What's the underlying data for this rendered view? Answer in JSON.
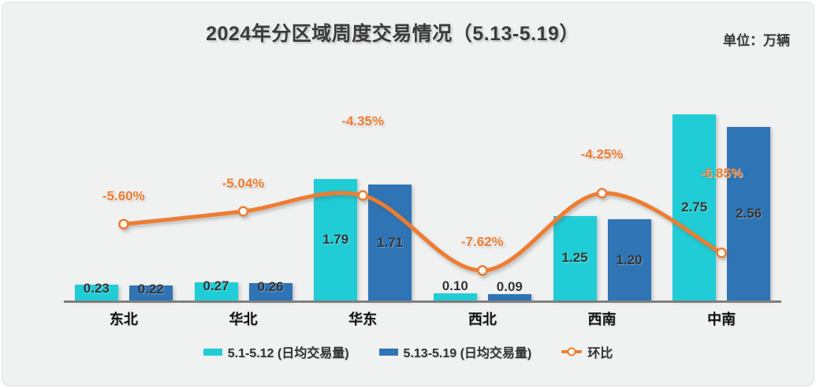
{
  "chart_data": {
    "type": "bar+line",
    "title": "2024年分区域周度交易情况（5.13-5.19）",
    "unit_label": "单位：万辆",
    "categories": [
      "东北",
      "华北",
      "华东",
      "西北",
      "西南",
      "中南"
    ],
    "series": [
      {
        "name": "5.1-5.12 (日均交易量)",
        "type": "bar",
        "color": "#20CDD6",
        "values": [
          0.23,
          0.27,
          1.79,
          0.1,
          1.25,
          2.75
        ]
      },
      {
        "name": "5.13-5.19 (日均交易量)",
        "type": "bar",
        "color": "#2F74B5",
        "values": [
          0.22,
          0.26,
          1.71,
          0.09,
          1.2,
          2.56
        ]
      },
      {
        "name": "环比",
        "type": "line",
        "color": "#ED7D31",
        "values": [
          -5.6,
          -5.04,
          -4.35,
          -7.62,
          -4.25,
          -6.85
        ],
        "labels": [
          "-5.60%",
          "-5.04%",
          "-4.35%",
          "-7.62%",
          "-4.25%",
          "-6.85%"
        ]
      }
    ],
    "value_label_decimals": 2,
    "axis": {
      "baseline_visible": true,
      "gridlines": false,
      "y_axis_labels": false
    },
    "legend_position": "bottom"
  },
  "colors": {
    "background": "#F0F1F1",
    "axis_line": "#7F7F7F",
    "title_text": "#3B3B3B",
    "value_label": "#343434",
    "category_label": "#101010",
    "percent_label": "#ED7D31"
  }
}
